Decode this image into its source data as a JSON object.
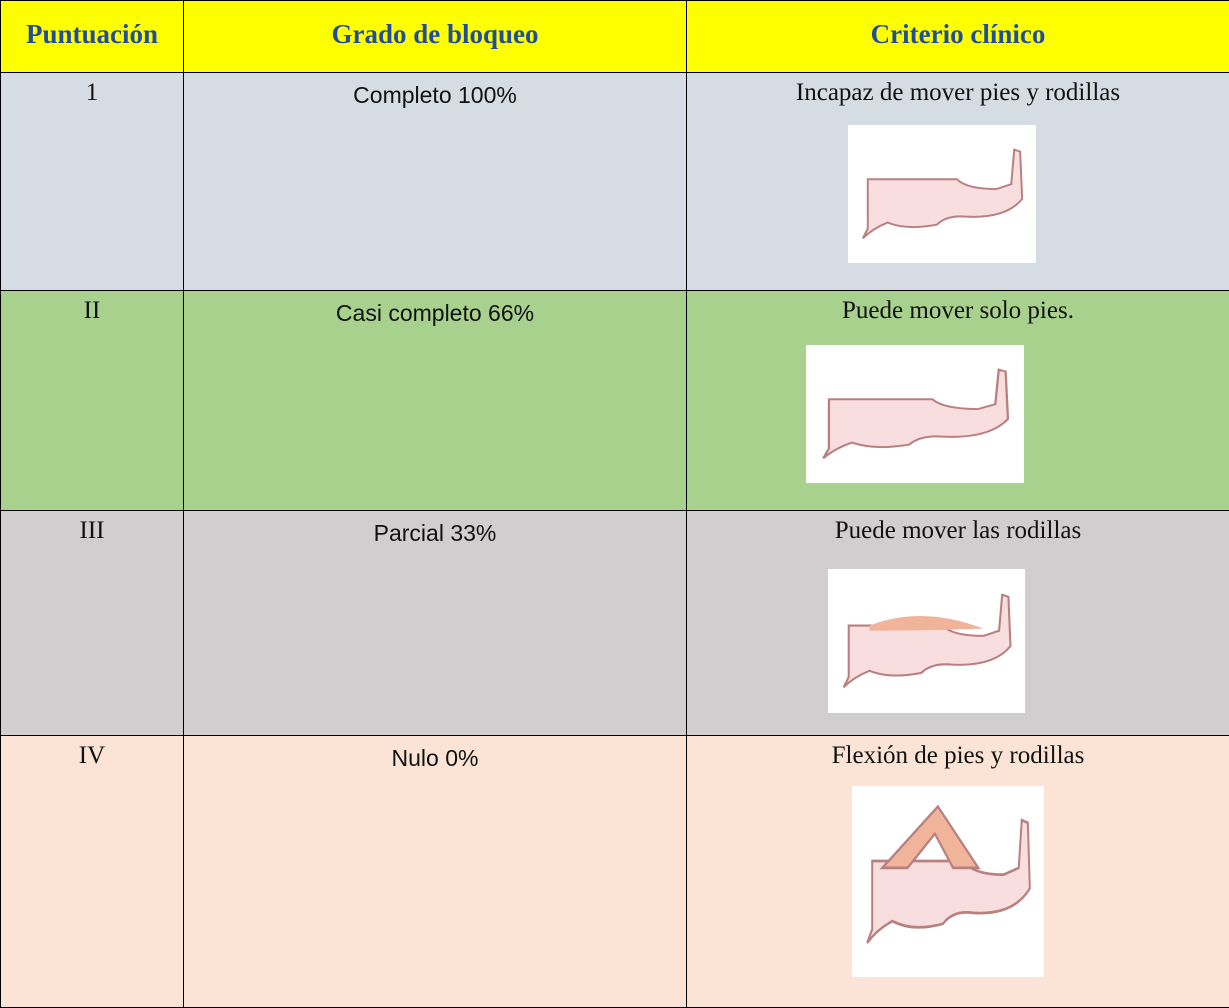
{
  "table": {
    "header": [
      "Puntuación",
      "Grado de bloqueo",
      "Criterio clínico"
    ],
    "rows": [
      [
        "1",
        "Completo 100%",
        "Incapaz de mover pies y rodillas"
      ],
      [
        "II",
        "Casi completo 66%",
        "Puede mover solo pies."
      ],
      [
        "III",
        "Parcial 33%",
        "Puede mover las rodillas"
      ],
      [
        "IV",
        "Nulo 0%",
        "Flexión de pies y rodillas"
      ]
    ]
  }
}
